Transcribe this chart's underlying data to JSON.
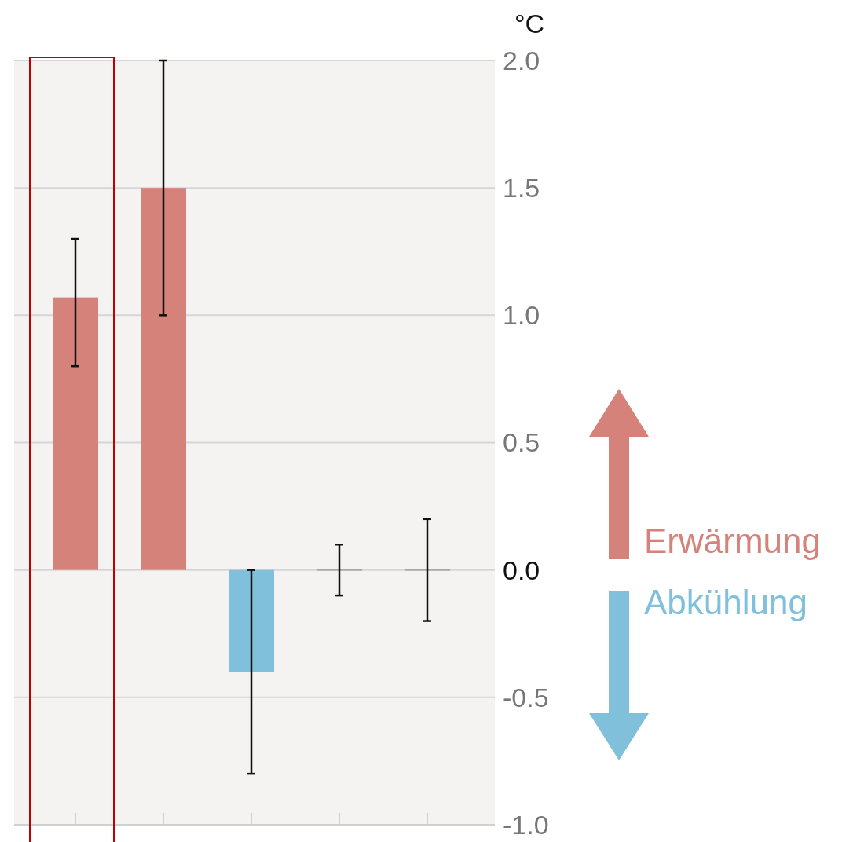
{
  "chart_data": {
    "type": "bar",
    "ylabel": "°C",
    "categories": [
      null,
      null,
      null,
      null,
      null
    ],
    "values": [
      1.07,
      1.5,
      -0.4,
      0,
      0
    ],
    "colors": [
      "#d4827a",
      "#d4827a",
      "#80c0da",
      "#a8a8a8",
      "#a8a8a8"
    ],
    "errors": [
      [
        0.8,
        1.3
      ],
      [
        1.0,
        2.0
      ],
      [
        -0.8,
        0
      ],
      [
        -0.1,
        0.1
      ],
      [
        -0.2,
        0.2
      ]
    ],
    "ylim": [
      -1,
      2
    ],
    "yticks": [
      {
        "value": -1,
        "label": "-1.0"
      },
      {
        "value": -0.5,
        "label": "-0.5"
      },
      {
        "value": 0,
        "label": "0.0"
      },
      {
        "value": 0.5,
        "label": "0.5"
      },
      {
        "value": 1,
        "label": "1.0"
      },
      {
        "value": 1.5,
        "label": "1.5"
      },
      {
        "value": 2,
        "label": "2.0"
      }
    ],
    "grid": "y",
    "annotations": [
      "Erwärmung",
      "Abkühlung"
    ]
  }
}
